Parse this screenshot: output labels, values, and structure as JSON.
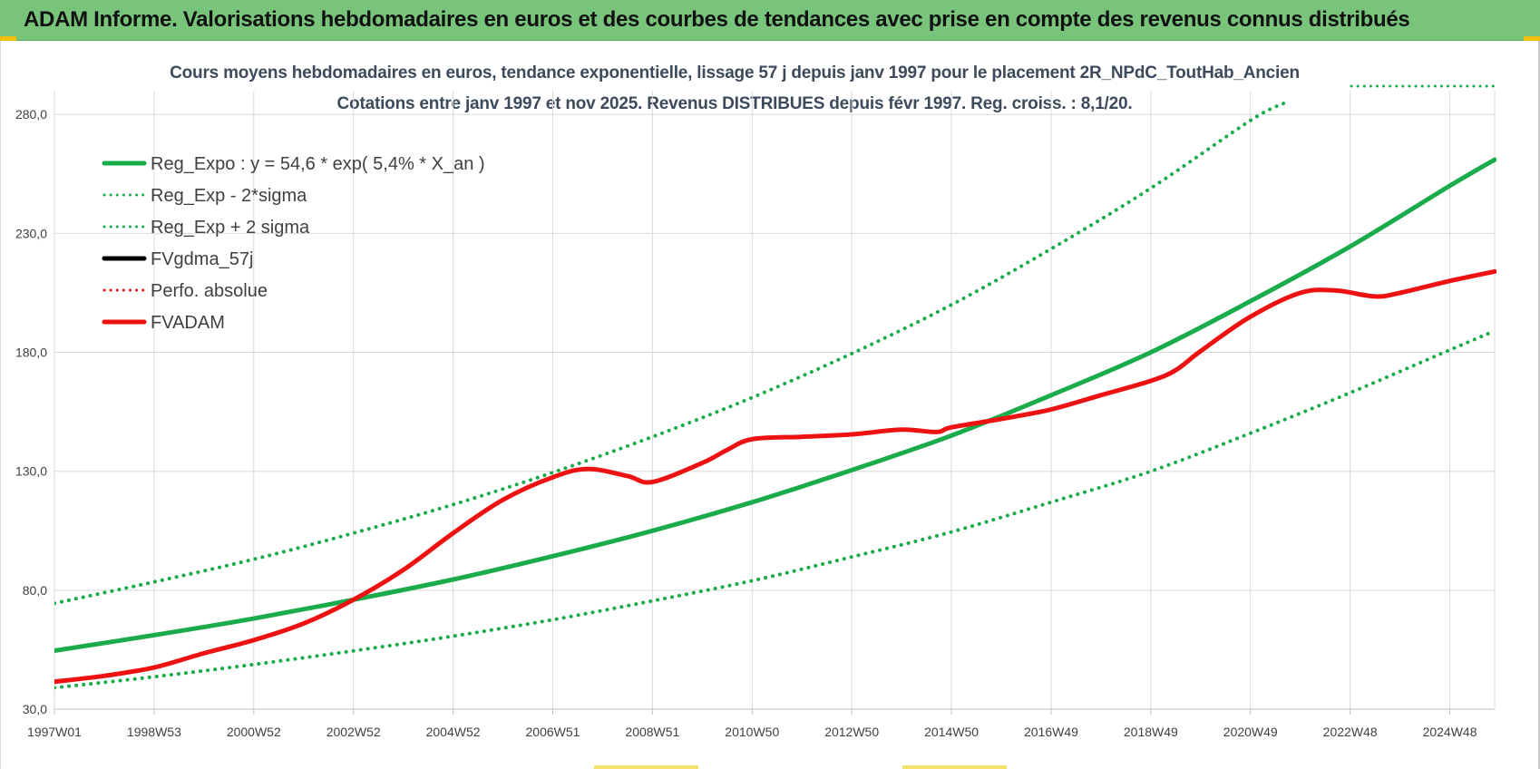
{
  "banner": {
    "title": "ADAM Informe. Valorisations hebdomadaires en euros et des courbes de tendances avec prise en compte des revenus connus distribués"
  },
  "colors": {
    "banner": "#78c47a",
    "reg_green": "#1aab4b",
    "red": "#ee1111",
    "grid": "#d9d9d9"
  },
  "chart_data": {
    "type": "line",
    "title": "Cours moyens hebdomadaires en euros, tendance exponentielle, lissage 57 j depuis janv 1997 pour le placement 2R_NPdC_ToutHab_Ancien",
    "subtitle": "Cotations entre janv 1997 et nov 2025. Revenus DISTRIBUES depuis févr 1997. Reg. croiss. : 8,1/20.",
    "xlabel": "",
    "ylabel": "",
    "ylim": [
      30,
      290
    ],
    "yticks": [
      "30,0",
      "80,0",
      "130,0",
      "180,0",
      "230,0",
      "280,0"
    ],
    "xticks": [
      "1997W01",
      "1998W53",
      "2000W52",
      "2002W52",
      "2004W52",
      "2006W51",
      "2008W51",
      "2010W50",
      "2012W50",
      "2014W50",
      "2016W49",
      "2018W49",
      "2020W49",
      "2022W48",
      "2024W48"
    ],
    "x_range_years": [
      1997.0,
      2025.9
    ],
    "grid": true,
    "legend_position": "top-left",
    "series": [
      {
        "name": "Reg_Expo : y = 54,6 * exp( 5,4% *  X_an )",
        "color": "#1aab4b",
        "style": "solid",
        "x": [
          1997,
          1999,
          2001,
          2003,
          2005,
          2007,
          2009,
          2011,
          2013,
          2015,
          2017,
          2019,
          2021,
          2023,
          2025,
          2025.9
        ],
        "y": [
          54.6,
          61.1,
          68.1,
          76.0,
          84.5,
          94.3,
          105.0,
          117.0,
          130.5,
          145.0,
          162.0,
          180.0,
          201.5,
          224.5,
          250.0,
          261.0
        ]
      },
      {
        "name": "Reg_Exp - 2*sigma",
        "color": "#1aab4b",
        "style": "dotted",
        "x": [
          1997,
          1999,
          2001,
          2003,
          2005,
          2007,
          2009,
          2011,
          2013,
          2015,
          2017,
          2019,
          2021,
          2023,
          2025,
          2025.9
        ],
        "y": [
          39.0,
          43.6,
          48.8,
          54.5,
          60.7,
          67.6,
          75.5,
          84.0,
          94.0,
          104.5,
          117.0,
          130.0,
          146.0,
          163.0,
          181.0,
          189.0
        ]
      },
      {
        "name": "Reg_Exp + 2 sigma",
        "color": "#1aab4b",
        "style": "dotted",
        "x": [
          1997,
          1999,
          2001,
          2003,
          2005,
          2007,
          2009,
          2011,
          2013,
          2015,
          2017,
          2019,
          2021,
          2021.7
        ],
        "y": [
          74.5,
          83.5,
          93.0,
          104.0,
          116.0,
          129.5,
          144.5,
          161.0,
          179.5,
          200.0,
          223.5,
          249.0,
          277.5,
          285.0
        ]
      },
      {
        "name": "FVgdma_57j",
        "color": "#000000",
        "style": "solid",
        "x": [],
        "y": []
      },
      {
        "name": "Perfo. absolue",
        "color": "#ee1111",
        "style": "dotted",
        "x": [],
        "y": []
      },
      {
        "name": "FVADAM",
        "color": "#ee1111",
        "style": "solid",
        "x": [
          1997,
          1998,
          1999,
          2000,
          2001,
          2002,
          2003,
          2004,
          2005,
          2006,
          2007,
          2007.7,
          2008.5,
          2009,
          2010,
          2010.5,
          2011,
          2012,
          2013,
          2014,
          2014.7,
          2015,
          2016,
          2017,
          2018,
          2019,
          2019.5,
          2020,
          2021,
          2022,
          2022.7,
          2023.5,
          2024,
          2025,
          2025.9
        ],
        "y": [
          41.5,
          44.0,
          47.5,
          53.5,
          59.0,
          66.0,
          76.0,
          88.5,
          104.0,
          118.0,
          127.5,
          131.0,
          128.0,
          125.5,
          133.5,
          139.0,
          143.5,
          144.5,
          145.5,
          147.5,
          146.5,
          148.5,
          152.0,
          156.0,
          162.0,
          168.0,
          172.5,
          180.5,
          195.0,
          205.0,
          206.0,
          203.5,
          205.0,
          210.0,
          214.0
        ]
      }
    ]
  }
}
